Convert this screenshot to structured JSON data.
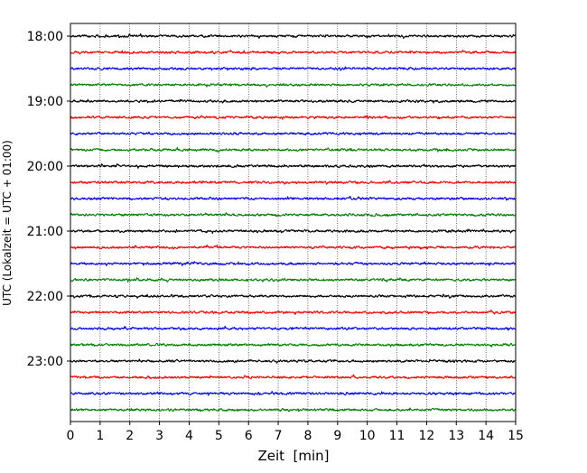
{
  "chart_data": {
    "type": "line",
    "title": "",
    "xlabel": "Zeit  [min]",
    "ylabel": "UTC (Lokalzeit = UTC + 01:00)",
    "xlim": [
      0,
      15
    ],
    "x_ticks": [
      0,
      1,
      2,
      3,
      4,
      5,
      6,
      7,
      8,
      9,
      10,
      11,
      12,
      13,
      14,
      15
    ],
    "y_tick_labels": [
      "18:00",
      "19:00",
      "20:00",
      "21:00",
      "22:00",
      "23:00"
    ],
    "y_tick_row_index": [
      0,
      4,
      8,
      12,
      16,
      20
    ],
    "grid": "vertical dotted lines at each minute",
    "trace_interval_minutes": 15,
    "trace_colors_cycle": [
      "#000000",
      "#ff0000",
      "#0000ff",
      "#008000"
    ],
    "traces": [
      {
        "start_utc": "18:00",
        "color": "#000000"
      },
      {
        "start_utc": "18:15",
        "color": "#ff0000"
      },
      {
        "start_utc": "18:30",
        "color": "#0000ff"
      },
      {
        "start_utc": "18:45",
        "color": "#008000"
      },
      {
        "start_utc": "19:00",
        "color": "#000000"
      },
      {
        "start_utc": "19:15",
        "color": "#ff0000"
      },
      {
        "start_utc": "19:30",
        "color": "#0000ff"
      },
      {
        "start_utc": "19:45",
        "color": "#008000"
      },
      {
        "start_utc": "20:00",
        "color": "#000000"
      },
      {
        "start_utc": "20:15",
        "color": "#ff0000"
      },
      {
        "start_utc": "20:30",
        "color": "#0000ff"
      },
      {
        "start_utc": "20:45",
        "color": "#008000"
      },
      {
        "start_utc": "21:00",
        "color": "#000000"
      },
      {
        "start_utc": "21:15",
        "color": "#ff0000"
      },
      {
        "start_utc": "21:30",
        "color": "#0000ff"
      },
      {
        "start_utc": "21:45",
        "color": "#008000"
      },
      {
        "start_utc": "22:00",
        "color": "#000000"
      },
      {
        "start_utc": "22:15",
        "color": "#ff0000"
      },
      {
        "start_utc": "22:30",
        "color": "#0000ff"
      },
      {
        "start_utc": "22:45",
        "color": "#008000"
      },
      {
        "start_utc": "23:00",
        "color": "#000000"
      },
      {
        "start_utc": "23:15",
        "color": "#ff0000"
      },
      {
        "start_utc": "23:30",
        "color": "#0000ff"
      },
      {
        "start_utc": "23:45",
        "color": "#008000"
      }
    ]
  }
}
